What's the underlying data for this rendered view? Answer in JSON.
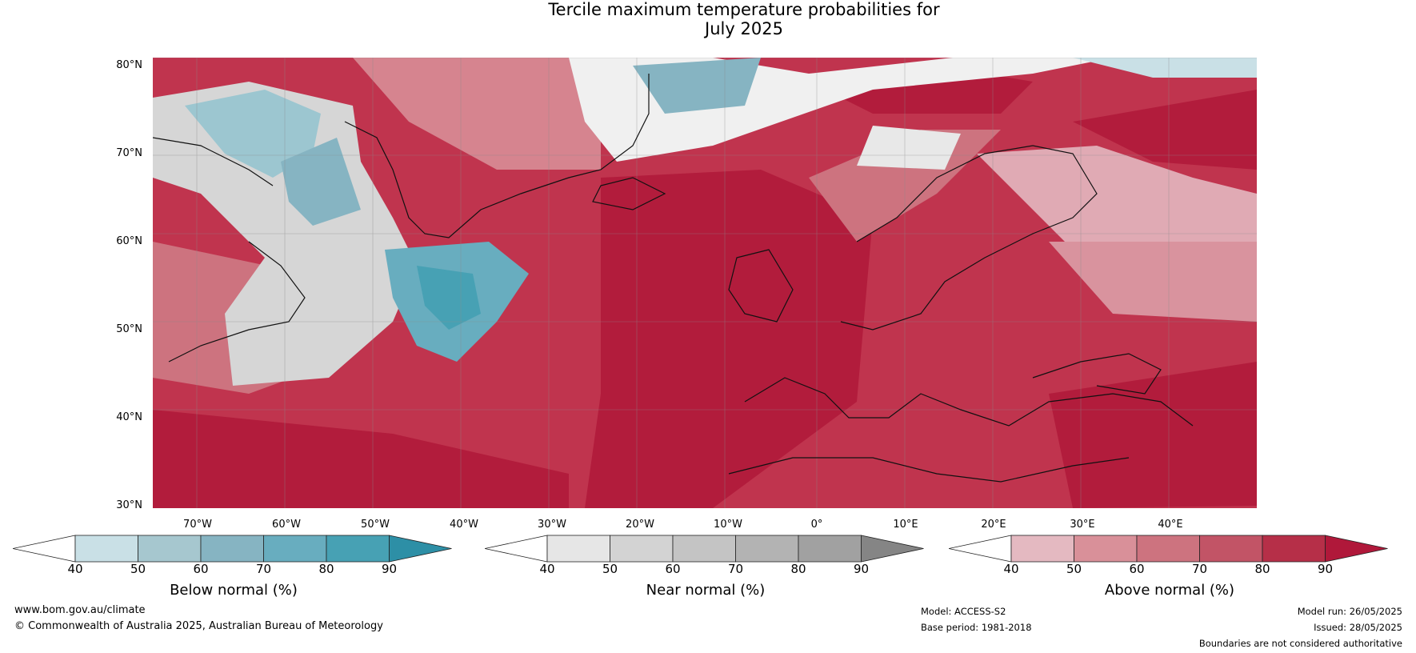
{
  "title": {
    "line1": "Tercile maximum temperature probabilities for",
    "line2": "July 2025"
  },
  "map": {
    "lat_labels": [
      "80°N",
      "70°N",
      "60°N",
      "50°N",
      "40°N",
      "30°N"
    ],
    "lon_labels": [
      "70°W",
      "60°W",
      "50°W",
      "40°W",
      "30°W",
      "20°W",
      "10°W",
      "0°",
      "10°E",
      "20°E",
      "30°E",
      "40°E"
    ]
  },
  "colorbars": [
    {
      "label": "Below normal (%)",
      "ticks": [
        "40",
        "50",
        "60",
        "70",
        "80",
        "90"
      ],
      "colors": [
        "#c9e0e6",
        "#a6c7cf",
        "#86b4c2",
        "#68adbf",
        "#47a1b4"
      ],
      "low_color": "#ffffff",
      "high_color": "#2d8fa6"
    },
    {
      "label": "Near normal (%)",
      "ticks": [
        "40",
        "50",
        "60",
        "70",
        "80",
        "90"
      ],
      "colors": [
        "#e6e6e6",
        "#d3d3d3",
        "#c4c4c4",
        "#b3b3b3",
        "#a1a1a1"
      ],
      "low_color": "#ffffff",
      "high_color": "#858585"
    },
    {
      "label": "Above normal (%)",
      "ticks": [
        "40",
        "50",
        "60",
        "70",
        "80",
        "90"
      ],
      "colors": [
        "#e4b9c1",
        "#d99099",
        "#cd737f",
        "#c25466",
        "#b62f48"
      ],
      "low_color": "#ffffff",
      "high_color": "#b0183a"
    }
  ],
  "footer": {
    "website": "www.bom.gov.au/climate",
    "copyright": "© Commonwealth of Australia 2025, Australian Bureau of Meteorology",
    "model": "Model: ACCESS-S2",
    "base_period": "Base period: 1981-2018",
    "model_run": "Model run: 26/05/2025",
    "issued": "Issued: 28/05/2025",
    "disclaimer": "Boundaries are not considered authoritative"
  }
}
